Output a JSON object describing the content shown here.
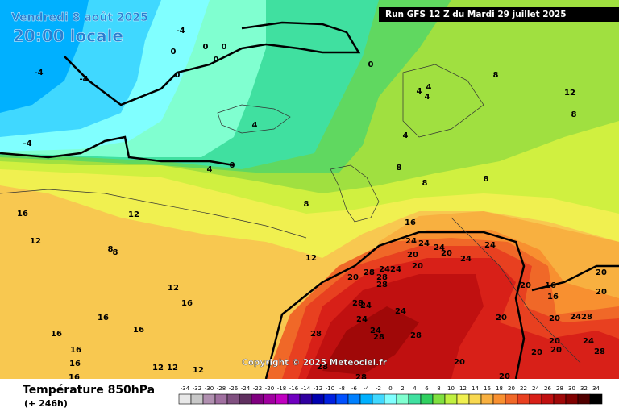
{
  "header": {
    "date": "Vendredi 8 août 2025",
    "time": "20:00 locale",
    "run": "Run GFS 12 Z du Mardi 29 juillet 2025"
  },
  "copyright": "Copyright © 2025 Meteociel.fr",
  "footer": {
    "title": "Température 850hPa",
    "lead": "(+ 246h)"
  },
  "scale": {
    "values": [
      -34,
      -32,
      -30,
      -28,
      -26,
      -24,
      -22,
      -20,
      -18,
      -16,
      -14,
      -12,
      -10,
      -8,
      -6,
      -4,
      -2,
      0,
      2,
      4,
      6,
      8,
      10,
      12,
      14,
      16,
      18,
      20,
      22,
      24,
      26,
      28,
      30,
      32,
      34
    ],
    "colors": [
      "#e8e8e8",
      "#c8c8c8",
      "#b090b0",
      "#a070a0",
      "#805080",
      "#603060",
      "#800080",
      "#a000a0",
      "#c000c0",
      "#7000c0",
      "#3000a0",
      "#0000b0",
      "#0020e0",
      "#0050ff",
      "#0080ff",
      "#00b0ff",
      "#40d8ff",
      "#80ffff",
      "#80ffd0",
      "#40e0a0",
      "#30d060",
      "#80e040",
      "#c0f040",
      "#f0f050",
      "#f8d850",
      "#f8b040",
      "#f89030",
      "#f06828",
      "#e84020",
      "#d82018",
      "#c01010",
      "#a00808",
      "#800000",
      "#500000",
      "#000000"
    ]
  },
  "contour_labels": [
    "-4",
    "0",
    "0",
    "0",
    "0",
    "0",
    "0",
    "-4",
    "-4",
    "-4",
    "4",
    "4",
    "0",
    "4",
    "4",
    "4",
    "8",
    "12",
    "8",
    "4",
    "8",
    "8",
    "8",
    "8",
    "16",
    "12",
    "12",
    "8",
    "8",
    "12",
    "16",
    "24",
    "24",
    "24",
    "20",
    "24",
    "20",
    "24",
    "20",
    "28",
    "2424",
    "28",
    "28",
    "20",
    "12",
    "16",
    "20",
    "16",
    "16",
    "20",
    "20",
    "28",
    "24",
    "24",
    "16",
    "16",
    "16",
    "24",
    "20",
    "20",
    "2428",
    "28",
    "24",
    "28",
    "28",
    "20",
    "24",
    "20",
    "28",
    "20",
    "16",
    "16",
    "16",
    "12",
    "12",
    "12",
    "20",
    "20",
    "28",
    "28"
  ]
}
